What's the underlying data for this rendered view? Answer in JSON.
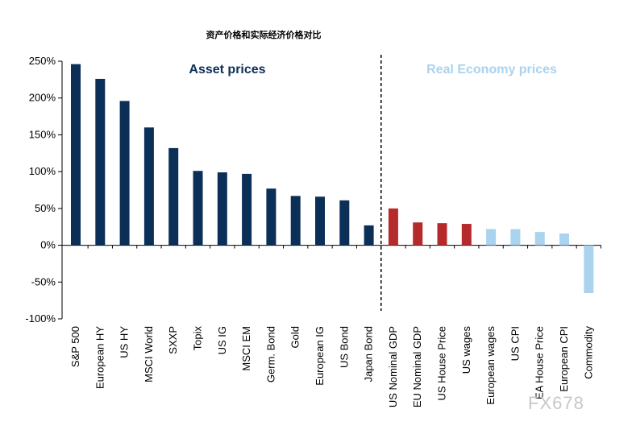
{
  "chart_data": {
    "type": "bar",
    "title": "资产价格和实际经济价格对比",
    "xlabel": "",
    "ylabel": "",
    "ylim": [
      -100,
      250
    ],
    "yticks": [
      "250%",
      "200%",
      "150%",
      "100%",
      "50%",
      "0%",
      "-50%",
      "-100%"
    ],
    "ytick_values": [
      250,
      200,
      150,
      100,
      50,
      0,
      -50,
      -100
    ],
    "categories": [
      "S&P 500",
      "European HY",
      "US HY",
      "MSCI World",
      "SXXP",
      "Topix",
      "US IG",
      "MSCI EM",
      "Germ. Bond",
      "Gold",
      "European IG",
      "US Bond",
      "Japan Bond",
      "US Nominal GDP",
      "EU Nominal GDP",
      "US House Price",
      "US wages",
      "European wages",
      "US CPI",
      "EA House Price",
      "European CPI",
      "Commodity"
    ],
    "values": [
      246,
      226,
      196,
      160,
      132,
      101,
      99,
      97,
      77,
      67,
      66,
      61,
      27,
      50,
      31,
      30,
      29,
      22,
      22,
      18,
      16,
      -65
    ],
    "groups": [
      "asset",
      "asset",
      "asset",
      "asset",
      "asset",
      "asset",
      "asset",
      "asset",
      "asset",
      "asset",
      "asset",
      "asset",
      "asset",
      "real_red",
      "real_red",
      "real_red",
      "real_red",
      "real_light",
      "real_light",
      "real_light",
      "real_light",
      "real_light"
    ],
    "annotations": {
      "left_section": "Asset prices",
      "right_section": "Real Economy prices"
    },
    "colors": {
      "asset": "#0b2f57",
      "real_red": "#b52a2a",
      "real_light": "#a9d3ee",
      "left_section_text": "#0b2f57",
      "right_section_text": "#a9d3ee",
      "divider": "#000000"
    },
    "grid": false,
    "legend": "none"
  },
  "watermark": "FX678"
}
